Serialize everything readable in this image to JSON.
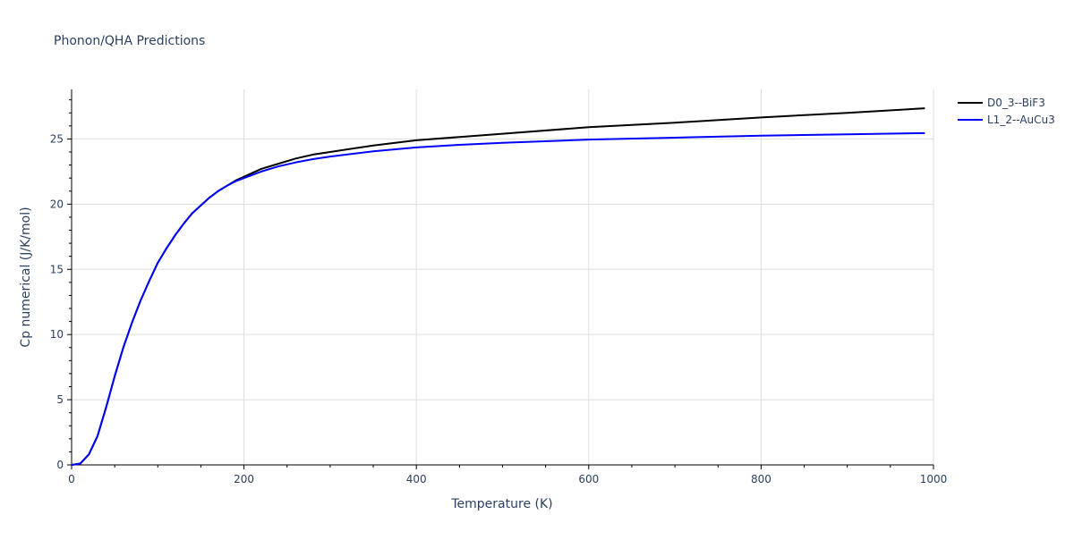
{
  "chart_data": {
    "type": "line",
    "title": "Phonon/QHA Predictions",
    "xlabel": "Temperature (K)",
    "ylabel": "Cp numerical (J/K/mol)",
    "xlim": [
      0,
      1000
    ],
    "ylim": [
      0,
      28.8
    ],
    "xticks": [
      0,
      200,
      400,
      600,
      800,
      1000
    ],
    "yticks": [
      0,
      5,
      10,
      15,
      20,
      25
    ],
    "grid": true,
    "legend_position": "top-right",
    "series": [
      {
        "name": "D0_3--BiF3",
        "color": "#000000",
        "x": [
          0,
          10,
          20,
          30,
          40,
          50,
          60,
          70,
          80,
          90,
          100,
          110,
          120,
          130,
          140,
          150,
          160,
          170,
          180,
          190,
          200,
          220,
          240,
          260,
          280,
          300,
          350,
          400,
          450,
          500,
          600,
          700,
          800,
          900,
          990
        ],
        "y": [
          0,
          0.1,
          0.8,
          2.2,
          4.4,
          6.8,
          9.0,
          10.9,
          12.6,
          14.1,
          15.5,
          16.6,
          17.6,
          18.5,
          19.3,
          19.9,
          20.5,
          21.0,
          21.4,
          21.8,
          22.1,
          22.7,
          23.1,
          23.5,
          23.8,
          24.0,
          24.5,
          24.9,
          25.15,
          25.4,
          25.9,
          26.25,
          26.65,
          27.0,
          27.35
        ]
      },
      {
        "name": "L1_2--AuCu3",
        "color": "#0000ff",
        "x": [
          0,
          10,
          20,
          30,
          40,
          50,
          60,
          70,
          80,
          90,
          100,
          110,
          120,
          130,
          140,
          150,
          160,
          170,
          180,
          190,
          200,
          220,
          240,
          260,
          280,
          300,
          350,
          400,
          450,
          500,
          600,
          700,
          800,
          900,
          990
        ],
        "y": [
          0,
          0.1,
          0.8,
          2.2,
          4.4,
          6.8,
          9.0,
          10.9,
          12.6,
          14.1,
          15.5,
          16.6,
          17.6,
          18.5,
          19.3,
          19.9,
          20.5,
          21.0,
          21.4,
          21.75,
          22.0,
          22.5,
          22.9,
          23.2,
          23.45,
          23.65,
          24.05,
          24.35,
          24.55,
          24.7,
          24.95,
          25.1,
          25.25,
          25.35,
          25.45
        ]
      }
    ]
  }
}
